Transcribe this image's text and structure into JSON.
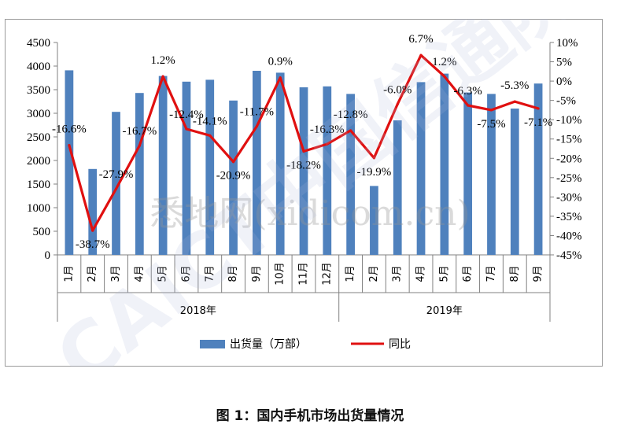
{
  "caption": "图 1：国内手机市场出货量情况",
  "watermark": {
    "site_text": "悉地网(xidicom.cn)",
    "logo_text": "CAICT中国信通院"
  },
  "colors": {
    "bar": "#4f81bd",
    "line": "#e01010",
    "axis": "#808080",
    "text": "#000000"
  },
  "chart_data": {
    "type": "bar",
    "title": "",
    "categories": [
      "1月",
      "2月",
      "3月",
      "4月",
      "5月",
      "6月",
      "7月",
      "8月",
      "9月",
      "10月",
      "11月",
      "12月",
      "1月",
      "2月",
      "3月",
      "4月",
      "5月",
      "6月",
      "7月",
      "8月",
      "9月"
    ],
    "groups": [
      {
        "label": "2018年",
        "count": 12
      },
      {
        "label": "2019年",
        "count": 9
      }
    ],
    "series": [
      {
        "name": "出货量（万部）",
        "type": "bar",
        "axis": "left",
        "values": [
          3910,
          1820,
          3030,
          3430,
          3790,
          3670,
          3710,
          3270,
          3900,
          3860,
          3550,
          3570,
          3410,
          1460,
          2850,
          3660,
          3840,
          3440,
          3410,
          3100,
          3630
        ]
      },
      {
        "name": "同比",
        "type": "line",
        "axis": "right",
        "values": [
          -16.6,
          -38.7,
          -27.9,
          -16.7,
          1.2,
          -12.4,
          -14.1,
          -20.9,
          -11.7,
          0.9,
          -18.2,
          -16.3,
          -12.8,
          -19.9,
          -6.0,
          6.7,
          1.2,
          -6.3,
          -7.5,
          -5.3,
          -7.1
        ],
        "labels": [
          "-16.6%",
          "-38.7%",
          "-27.9%",
          "-16.7%",
          "1.2%",
          "-12.4%",
          "-14.1%",
          "-20.9%",
          "-11.7%",
          "0.9%",
          "-18.2%",
          "-16.3%",
          "-12.8%",
          "-19.9%",
          "-6.0%",
          "6.7%",
          "1.2%",
          "-6.3%",
          "-7.5%",
          "-5.3%",
          "-7.1%"
        ]
      }
    ],
    "y_left": {
      "min": 0,
      "max": 4500,
      "step": 500,
      "ticks": [
        "0",
        "500",
        "1000",
        "1500",
        "2000",
        "2500",
        "3000",
        "3500",
        "4000",
        "4500"
      ]
    },
    "y_right": {
      "min": -45,
      "max": 10,
      "step": 5,
      "ticks": [
        "-45%",
        "-40%",
        "-35%",
        "-30%",
        "-25%",
        "-20%",
        "-15%",
        "-10%",
        "-5%",
        "0%",
        "5%",
        "10%"
      ]
    },
    "legend": {
      "position": "bottom",
      "items": [
        "出货量（万部）",
        "同比"
      ]
    },
    "grid": false
  }
}
